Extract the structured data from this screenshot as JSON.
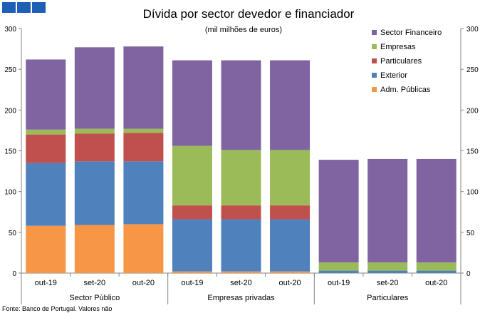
{
  "chart_data": {
    "type": "bar",
    "stacked": true,
    "title": "Dívida por sector devedor e financiador",
    "subtitle": "(mil milhões de euros)",
    "categories": [
      "out-19",
      "set-20",
      "out-20",
      "out-19",
      "set-20",
      "out-20",
      "out-19",
      "set-20",
      "out-20"
    ],
    "groups": [
      {
        "label": "Sector Público",
        "size": 3
      },
      {
        "label": "Empresas privadas",
        "size": 3
      },
      {
        "label": "Particulares",
        "size": 3
      }
    ],
    "series": [
      {
        "name": "Adm. Públicas",
        "color": "#f79646",
        "values": [
          58,
          59,
          60,
          2,
          2,
          2,
          0,
          0,
          0
        ]
      },
      {
        "name": "Exterior",
        "color": "#4f81bd",
        "values": [
          77,
          78,
          77,
          64,
          64,
          64,
          3,
          3,
          3
        ]
      },
      {
        "name": "Particulares",
        "color": "#c0504d",
        "values": [
          35,
          34,
          35,
          17,
          17,
          17,
          0,
          0,
          0
        ]
      },
      {
        "name": "Empresas",
        "color": "#9bbb59",
        "values": [
          6,
          6,
          5,
          73,
          68,
          68,
          10,
          10,
          10
        ]
      },
      {
        "name": "Sector Financeiro",
        "color": "#8064a2",
        "values": [
          86,
          100,
          101,
          105,
          110,
          110,
          126,
          127,
          127
        ]
      }
    ],
    "ylim": [
      0,
      300
    ],
    "yticks": [
      0,
      50,
      100,
      150,
      200,
      250,
      300
    ],
    "secondary_y_axis": true,
    "grid": false,
    "legend_position": "top-right",
    "source_note": "Fonte: Banco de Portugal. Valores não"
  }
}
